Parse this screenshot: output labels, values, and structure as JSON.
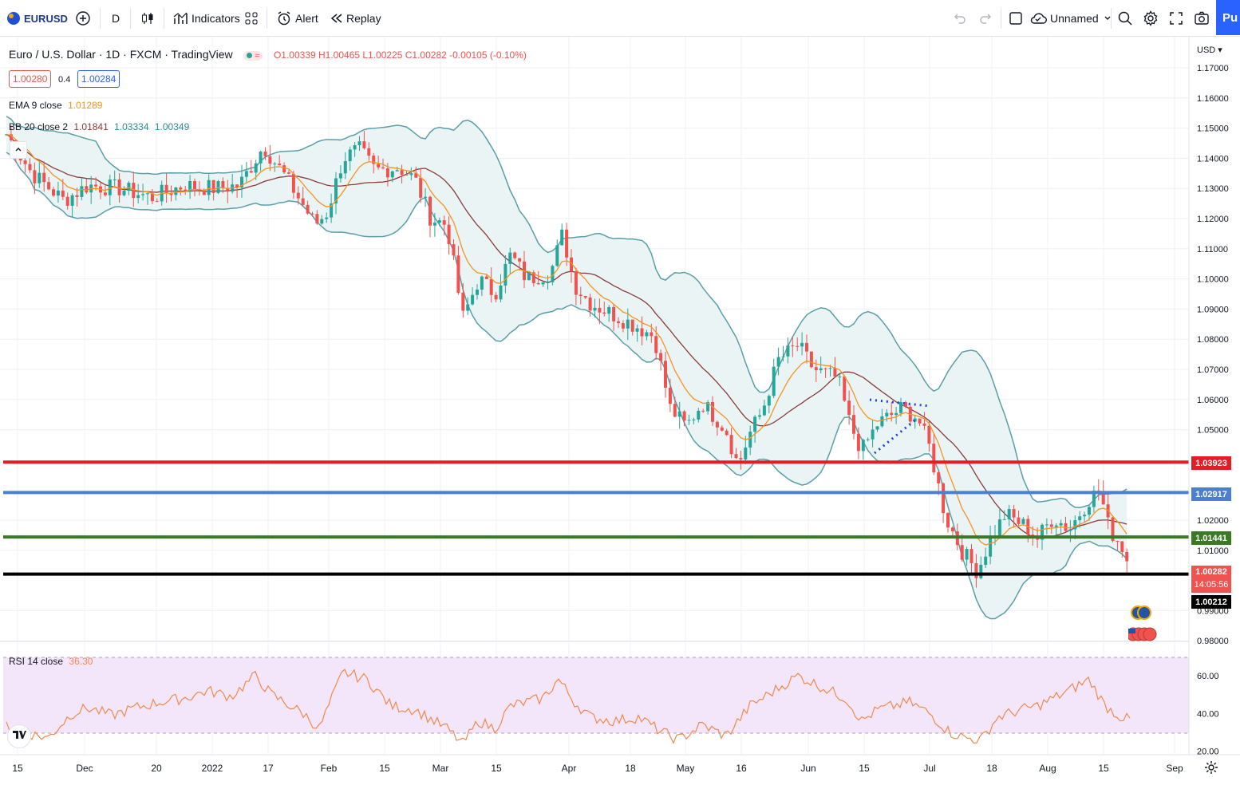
{
  "toolbar": {
    "symbol": "EURUSD",
    "interval": "D",
    "indicators_label": "Indicators",
    "alert_label": "Alert",
    "replay_label": "Replay",
    "layout_name": "Unnamed",
    "publish_label": "Pu"
  },
  "legend": {
    "title": "Euro / U.S. Dollar · 1D · FXCM · TradingView",
    "ohlc": "O1.00339 H1.00465 L1.00225 C1.00282 -0.00105 (-0.10%)",
    "bid": "1.00280",
    "spread": "0.4",
    "ask": "1.00284",
    "ema_label": "EMA 9 close",
    "ema_value": "1.01289",
    "bb_label": "BB 20 close 2",
    "bb_basis": "1.01841",
    "bb_upper": "1.03334",
    "bb_lower": "1.00349",
    "rsi_label": "RSI 14 close",
    "rsi_value": "36.30"
  },
  "price_axis": {
    "currency": "USD",
    "ticks": [
      "1.17000",
      "1.16000",
      "1.15000",
      "1.14000",
      "1.13000",
      "1.12000",
      "1.11000",
      "1.10000",
      "1.09000",
      "1.08000",
      "1.07000",
      "1.06000",
      "1.05000",
      "1.02000",
      "1.01000",
      "0.99000",
      "0.98000"
    ]
  },
  "rsi_axis": {
    "ticks": [
      "60.00",
      "40.00",
      "20.00"
    ]
  },
  "time_axis": {
    "ticks": [
      "15",
      "Dec",
      "20",
      "2022",
      "17",
      "Feb",
      "15",
      "Mar",
      "15",
      "Apr",
      "18",
      "May",
      "16",
      "Jun",
      "15",
      "Jul",
      "18",
      "Aug",
      "15",
      "Sep"
    ]
  },
  "horizontal_lines": [
    {
      "name": "hline-red",
      "price": "1.03923",
      "color": "#e01e24"
    },
    {
      "name": "hline-blue",
      "price": "1.02917",
      "color": "#4a7fd4"
    },
    {
      "name": "hline-green",
      "price": "1.01441",
      "color": "#3a7a24"
    },
    {
      "name": "hline-black",
      "price": "1.00212",
      "color": "#000000"
    }
  ],
  "last_price": {
    "value": "1.00282",
    "countdown": "14:05:56",
    "color": "#ef5350"
  },
  "colors": {
    "up": "#26a69a",
    "down": "#ef5350",
    "ema": "#f7931e",
    "bb_basis": "#8b3a3a",
    "bb_band": "#5a9fa8",
    "bb_fill": "#e8f3f4",
    "rsi": "#f08a4b",
    "rsi_bg": "#f3e6fa"
  },
  "chart_data": {
    "type": "line",
    "series": [
      {
        "name": "EMA 9 close",
        "last": 1.01289
      },
      {
        "name": "BB 20 close 2",
        "values": {
          "basis": 1.01841,
          "upper": 1.03334,
          "lower": 1.00349
        }
      },
      {
        "name": "RSI 14 close",
        "last": 36.3
      }
    ],
    "ylim": [
      0.975,
      1.175
    ]
  }
}
